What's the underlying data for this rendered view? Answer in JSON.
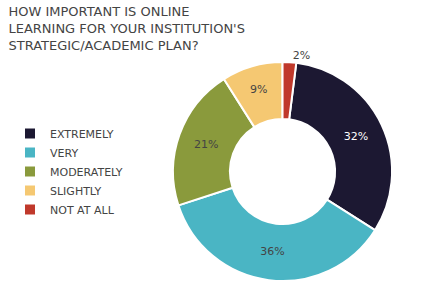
{
  "chart_data": {
    "type": "pie",
    "title": "HOW IMPORTANT IS ONLINE\nLEARNING FOR YOUR INSTITUTION'S\nSTRATEGIC/ACADEMIC PLAN?",
    "categories": [
      "EXTREMELY",
      "VERY",
      "MODERATELY",
      "SLIGHTLY",
      "NOT AT ALL"
    ],
    "values": [
      32,
      36,
      21,
      9,
      2
    ],
    "value_labels": [
      "32%",
      "36%",
      "21%",
      "9%",
      "2%"
    ],
    "colors": [
      "#1c1832",
      "#4ab5c4",
      "#8a9a3c",
      "#f5c872",
      "#c0392b"
    ],
    "data_labels": true,
    "legend": "left"
  }
}
